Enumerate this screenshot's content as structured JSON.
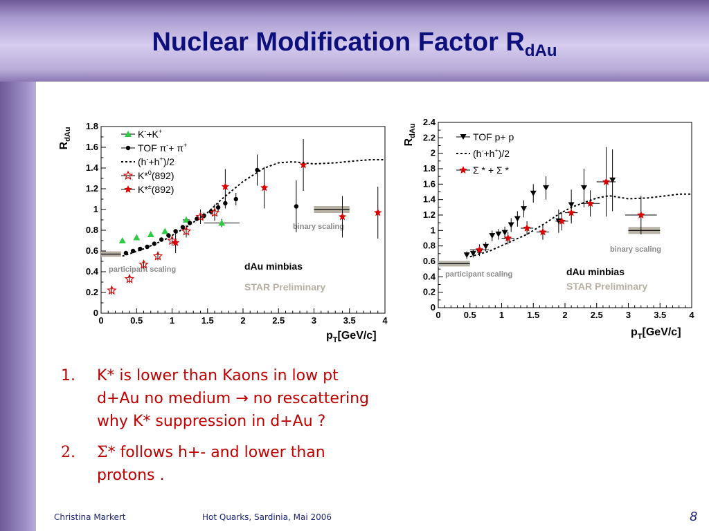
{
  "slide": {
    "title": "Nuclear Modification Factor R",
    "title_sub": "dAu",
    "footer_left": "Christina Markert",
    "footer_center": "Hot Quarks, Sardinia, Mai 2006",
    "page_number": "8"
  },
  "bullets": [
    {
      "num": "1.",
      "lines": [
        "K* is lower than  Kaons in low pt",
        "d+Au no medium → no rescattering",
        "why K* suppression in d+Au ?"
      ]
    },
    {
      "num": "2.",
      "sigma": "Σ",
      "lines": [
        "* follows h+- and lower than",
        "protons ."
      ]
    }
  ],
  "chart_data": [
    {
      "type": "scatter",
      "ylabel": "R",
      "ylabel_sub": "dAu",
      "xlabel": "p",
      "xlabel_sub": "T",
      "xlabel_unit": "[GeV/c]",
      "xlim": [
        0,
        4
      ],
      "ylim": [
        0,
        1.8
      ],
      "x_ticks": [
        0,
        0.5,
        1,
        1.5,
        2,
        2.5,
        3,
        3.5,
        4
      ],
      "x_tick_labels": [
        "0",
        "0.5",
        "1",
        "1.5",
        "2",
        "2.5",
        "3",
        "3.5",
        "4"
      ],
      "y_ticks": [
        0,
        0.2,
        0.4,
        0.6,
        0.8,
        1,
        1.2,
        1.4,
        1.6,
        1.8
      ],
      "y_tick_labels": [
        "0",
        "0.2",
        "0.4",
        "0.6",
        "0.8",
        "1",
        "1.2",
        "1.4",
        "1.6",
        "1.8"
      ],
      "legend": {
        "placement": "top-left",
        "entries": [
          {
            "base": "K",
            "sup": "-",
            "mid": "+K",
            "sup2": "+",
            "tail": ""
          },
          {
            "base": "TOF π",
            "sup": "-",
            "mid": "+ π",
            "sup2": "+",
            "tail": ""
          },
          {
            "base": "(h",
            "sup": "-",
            "mid": "+h",
            "sup2": "+",
            "tail": ")/2"
          },
          {
            "base": "K*",
            "sup": "0",
            "mid": "(892)",
            "sup2": "",
            "tail": ""
          },
          {
            "base": "K*",
            "sup": "±",
            "mid": "(892)",
            "sup2": "",
            "tail": ""
          }
        ]
      },
      "annotations": {
        "system": "dAu minbias",
        "preliminary": "STAR Preliminary",
        "participant": "participant scaling",
        "binary": "binary scaling"
      },
      "participant_band": {
        "x": [
          0,
          0.28
        ],
        "y": 0.57
      },
      "binary_band": {
        "x": [
          3.0,
          3.5
        ],
        "y": 1.0
      },
      "series": [
        {
          "marker": "triangle-green",
          "color": "#2ecc40",
          "x": [
            0.3,
            0.5,
            0.7,
            0.9,
            1.2,
            1.7
          ],
          "y": [
            0.7,
            0.73,
            0.76,
            0.79,
            0.9,
            0.87
          ],
          "yerr": [
            0.01,
            0.01,
            0.01,
            0.02,
            0.02,
            0.04
          ],
          "xerr": [
            0,
            0,
            0,
            0,
            0.05,
            0.25
          ]
        },
        {
          "marker": "circle-black",
          "color": "#000000",
          "x": [
            0.35,
            0.45,
            0.55,
            0.65,
            0.75,
            0.85,
            0.95,
            1.05,
            1.15,
            1.25,
            1.35,
            1.45,
            1.55,
            1.65,
            1.75,
            1.9,
            2.2,
            2.75
          ],
          "y": [
            0.58,
            0.6,
            0.62,
            0.64,
            0.67,
            0.71,
            0.75,
            0.79,
            0.83,
            0.87,
            0.91,
            0.94,
            0.98,
            1.02,
            1.06,
            1.1,
            1.38,
            1.03
          ],
          "yerr": [
            0.01,
            0.01,
            0.01,
            0.01,
            0.01,
            0.01,
            0.01,
            0.01,
            0.02,
            0.02,
            0.02,
            0.03,
            0.03,
            0.04,
            0.05,
            0.06,
            0.15,
            0.25
          ]
        },
        {
          "marker": "star-open-red",
          "color": "#dd0000",
          "x": [
            0.15,
            0.4,
            0.6,
            0.8,
            1.0,
            1.2,
            1.4,
            1.6
          ],
          "y": [
            0.22,
            0.33,
            0.47,
            0.55,
            0.7,
            0.79,
            0.93,
            0.97
          ],
          "yerr": [
            0.04,
            0.04,
            0.04,
            0.04,
            0.05,
            0.06,
            0.07,
            0.08
          ]
        },
        {
          "marker": "star-filled-red",
          "color": "#dd0000",
          "x": [
            1.05,
            1.75,
            2.3,
            2.85,
            3.4,
            3.9
          ],
          "y": [
            0.68,
            1.22,
            1.21,
            1.43,
            0.93,
            0.97
          ],
          "yerr": [
            0.1,
            0.17,
            0.2,
            0.25,
            0.2,
            0.25
          ]
        },
        {
          "marker": "dotted-line",
          "color": "#000000",
          "x": [
            0.3,
            0.6,
            0.9,
            1.2,
            1.5,
            1.7,
            2.0,
            2.3,
            2.5,
            2.7,
            3.0,
            3.3,
            3.6,
            3.8,
            4.0
          ],
          "y": [
            0.55,
            0.62,
            0.71,
            0.83,
            0.97,
            1.1,
            1.27,
            1.4,
            1.45,
            1.46,
            1.44,
            1.45,
            1.47,
            1.48,
            1.48
          ]
        }
      ]
    },
    {
      "type": "scatter",
      "ylabel": "R",
      "ylabel_sub": "dAu",
      "xlabel": "p",
      "xlabel_sub": "T",
      "xlabel_unit": "[GeV/c]",
      "xlim": [
        0,
        4
      ],
      "ylim": [
        0,
        2.4
      ],
      "x_ticks": [
        0,
        0.5,
        1,
        1.5,
        2,
        2.5,
        3,
        3.5,
        4
      ],
      "x_tick_labels": [
        "0",
        "0.5",
        "1",
        "1.5",
        "2",
        "2.5",
        "3",
        "3.5",
        "4"
      ],
      "y_ticks": [
        0,
        0.2,
        0.4,
        0.6,
        0.8,
        1,
        1.2,
        1.4,
        1.6,
        1.8,
        2,
        2.2,
        2.4
      ],
      "y_tick_labels": [
        "0",
        "0.2",
        "0.4",
        "0.6",
        "0.8",
        "1",
        "1.2",
        "1.4",
        "1.6",
        "1.8",
        "2",
        "2.2",
        "2.4"
      ],
      "legend": {
        "placement": "top-left",
        "entries": [
          {
            "base": "TOF  p+ p",
            "sup": "",
            "mid": "",
            "sup2": "",
            "tail": ""
          },
          {
            "base": "(h",
            "sup": "-",
            "mid": "+h",
            "sup2": "+",
            "tail": ")/2"
          },
          {
            "base": "Σ * + Σ *",
            "sup": "",
            "mid": "",
            "sup2": "",
            "tail": ""
          }
        ]
      },
      "annotations": {
        "system": "dAu minbias",
        "preliminary": "STAR Preliminary",
        "participant": "participant scaling",
        "binary": "binary scaling"
      },
      "participant_band": {
        "x": [
          0,
          0.5
        ],
        "y": 0.57
      },
      "binary_band": {
        "x": [
          3.0,
          3.5
        ],
        "y": 1.0
      },
      "series": [
        {
          "marker": "triangle-down-black",
          "color": "#000000",
          "x": [
            0.45,
            0.55,
            0.65,
            0.75,
            0.85,
            0.95,
            1.05,
            1.15,
            1.25,
            1.35,
            1.5,
            1.7,
            1.9,
            2.1,
            2.3,
            2.75
          ],
          "y": [
            0.68,
            0.7,
            0.72,
            0.79,
            0.93,
            0.95,
            0.97,
            1.07,
            1.15,
            1.28,
            1.48,
            1.55,
            1.12,
            1.33,
            1.55,
            1.65
          ],
          "yerr": [
            0.05,
            0.05,
            0.05,
            0.06,
            0.07,
            0.07,
            0.08,
            0.09,
            0.1,
            0.11,
            0.12,
            0.15,
            0.15,
            0.2,
            0.25,
            0.4
          ]
        },
        {
          "marker": "star-filled-red",
          "color": "#dd0000",
          "x": [
            0.65,
            1.1,
            1.4,
            1.65,
            1.95,
            2.1,
            2.4,
            2.65,
            3.2
          ],
          "y": [
            0.75,
            0.9,
            1.03,
            0.98,
            1.12,
            1.23,
            1.35,
            1.63,
            1.2
          ],
          "yerr": [
            0.07,
            0.08,
            0.09,
            0.1,
            0.12,
            0.14,
            0.17,
            0.45,
            0.25
          ],
          "xerr": [
            0.15,
            0.1,
            0.1,
            0.1,
            0.1,
            0.1,
            0.15,
            0.15,
            0.25
          ]
        },
        {
          "marker": "dotted-line",
          "color": "#000000",
          "x": [
            0.5,
            0.8,
            1.1,
            1.4,
            1.7,
            1.9,
            2.1,
            2.3,
            2.5,
            2.7,
            3.0,
            3.3,
            3.6,
            3.8,
            4.0
          ],
          "y": [
            0.66,
            0.73,
            0.84,
            0.95,
            1.1,
            1.21,
            1.3,
            1.36,
            1.42,
            1.45,
            1.41,
            1.42,
            1.45,
            1.47,
            1.47
          ]
        }
      ]
    }
  ]
}
